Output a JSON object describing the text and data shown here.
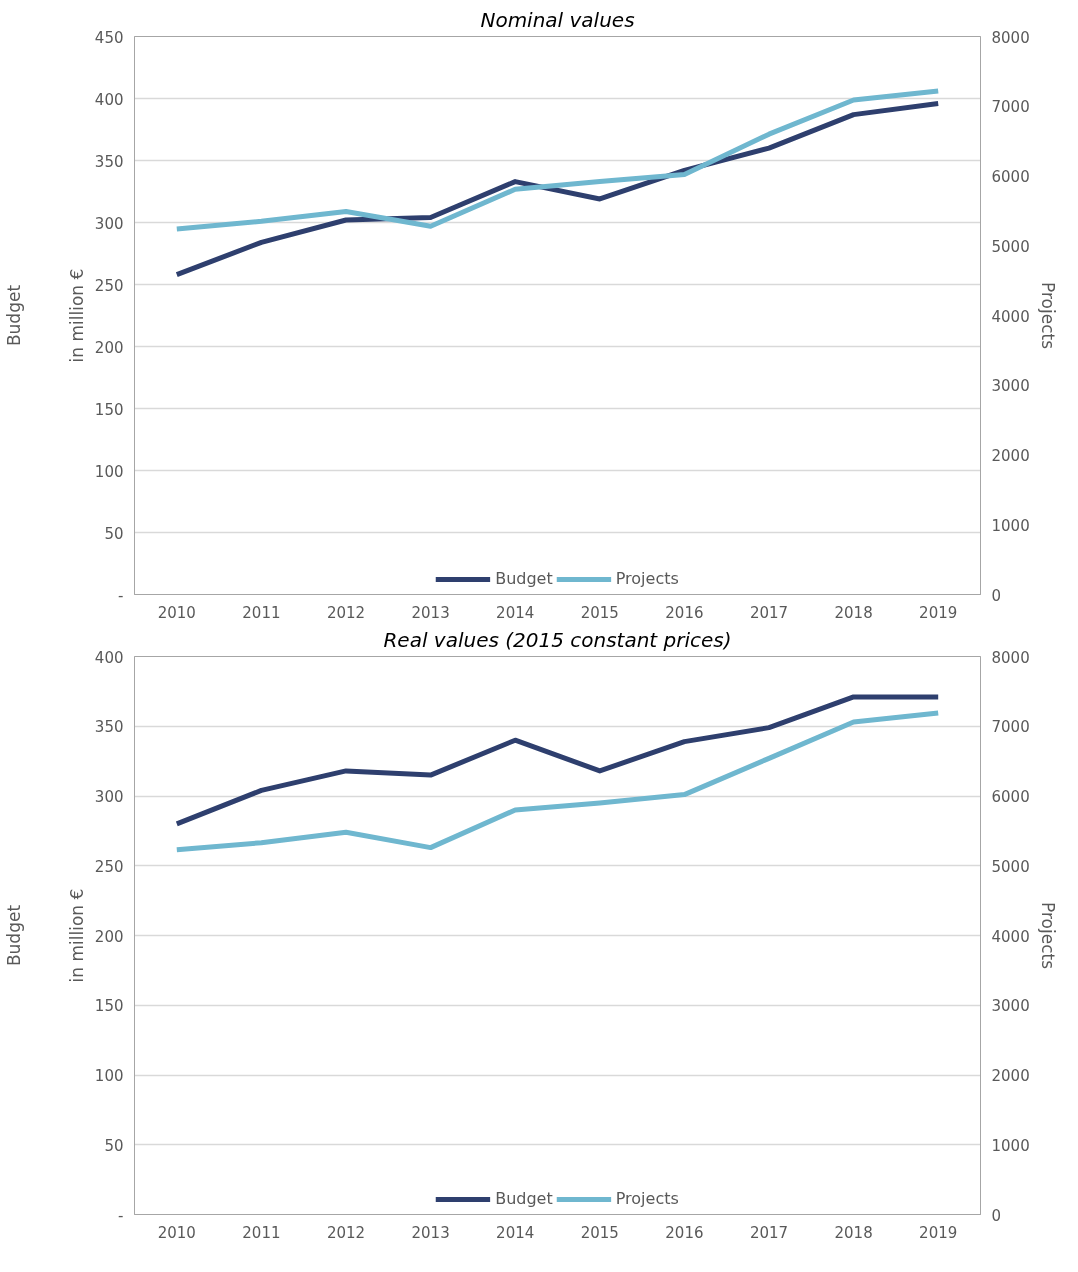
{
  "chart_data": [
    {
      "type": "line",
      "title": "Nominal values",
      "ylabel": "Budget",
      "y2label": "Projects",
      "annotations": [
        "in million €"
      ],
      "categories": [
        "2010",
        "2011",
        "2012",
        "2013",
        "2014",
        "2015",
        "2016",
        "2017",
        "2018",
        "2019"
      ],
      "series": [
        {
          "name": "Budget",
          "color": "#2e3f6e",
          "values": [
            258,
            284,
            302,
            304,
            333,
            319,
            342,
            360,
            387,
            396
          ]
        },
        {
          "name": "Projects",
          "color": "#6fb7cf",
          "axis": "y2",
          "values": [
            5240,
            5350,
            5490,
            5280,
            5810,
            5920,
            6020,
            6600,
            7090,
            7220
          ]
        }
      ],
      "ylim": [
        0,
        450
      ],
      "yticks": [
        {
          "value": 0,
          "label": "-"
        },
        50,
        100,
        150,
        200,
        250,
        300,
        350,
        400,
        450
      ],
      "y2lim": [
        0,
        8000
      ],
      "y2ticks": [
        0,
        1000,
        2000,
        3000,
        4000,
        5000,
        6000,
        7000,
        8000
      ],
      "grid": "y",
      "legend": "bottom",
      "marker": "none",
      "line_style": "solid"
    },
    {
      "type": "line",
      "title": "Real values (2015 constant prices)",
      "ylabel": "Budget",
      "y2label": "Projects",
      "annotations": [
        "in million €"
      ],
      "categories": [
        "2010",
        "2011",
        "2012",
        "2013",
        "2014",
        "2015",
        "2016",
        "2017",
        "2018",
        "2019"
      ],
      "series": [
        {
          "name": "Budget",
          "color": "#2e3f6e",
          "values": [
            280,
            304,
            318,
            315,
            340,
            318,
            339,
            349,
            371,
            371
          ]
        },
        {
          "name": "Projects",
          "color": "#6fb7cf",
          "axis": "y2",
          "values": [
            5230,
            5330,
            5480,
            5260,
            5800,
            5900,
            6020,
            6540,
            7060,
            7190
          ]
        }
      ],
      "ylim": [
        0,
        400
      ],
      "yticks": [
        {
          "value": 0,
          "label": "-"
        },
        50,
        100,
        150,
        200,
        250,
        300,
        350,
        400
      ],
      "y2lim": [
        0,
        8000
      ],
      "y2ticks": [
        0,
        1000,
        2000,
        3000,
        4000,
        5000,
        6000,
        7000,
        8000
      ],
      "grid": "y",
      "legend": "bottom",
      "marker": "none",
      "line_style": "solid"
    }
  ]
}
